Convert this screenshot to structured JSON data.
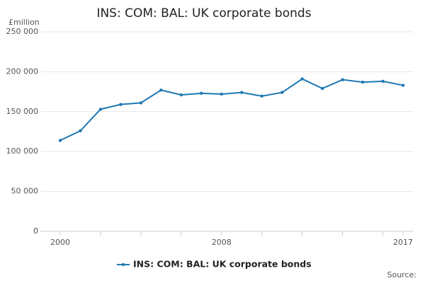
{
  "chart_data": {
    "type": "line",
    "title": "INS: COM: BAL: UK corporate bonds",
    "y_label": "£million",
    "source": "Source:",
    "categories": [
      "2000",
      null,
      null,
      null,
      null,
      null,
      null,
      null,
      "2008",
      null,
      null,
      null,
      null,
      null,
      null,
      null,
      null,
      "2017"
    ],
    "series": [
      {
        "name": "INS: COM: BAL: UK corporate bonds",
        "color": "#1f78b4",
        "values": [
          114000,
          126000,
          153000,
          159000,
          161000,
          177000,
          171000,
          173000,
          172000,
          174000,
          169500,
          174000,
          191000,
          179000,
          190000,
          187000,
          188000,
          183000
        ]
      }
    ],
    "ylim": [
      0,
      250000
    ],
    "yticks": [
      0,
      {
        "value": 50000,
        "label": "50 000"
      },
      {
        "value": 100000,
        "label": "100 000"
      },
      {
        "value": 150000,
        "label": "150 000"
      },
      {
        "value": 200000,
        "label": "200 000"
      },
      {
        "value": 250000,
        "label": "250 000"
      }
    ],
    "grid": true,
    "legend": "bottom"
  }
}
